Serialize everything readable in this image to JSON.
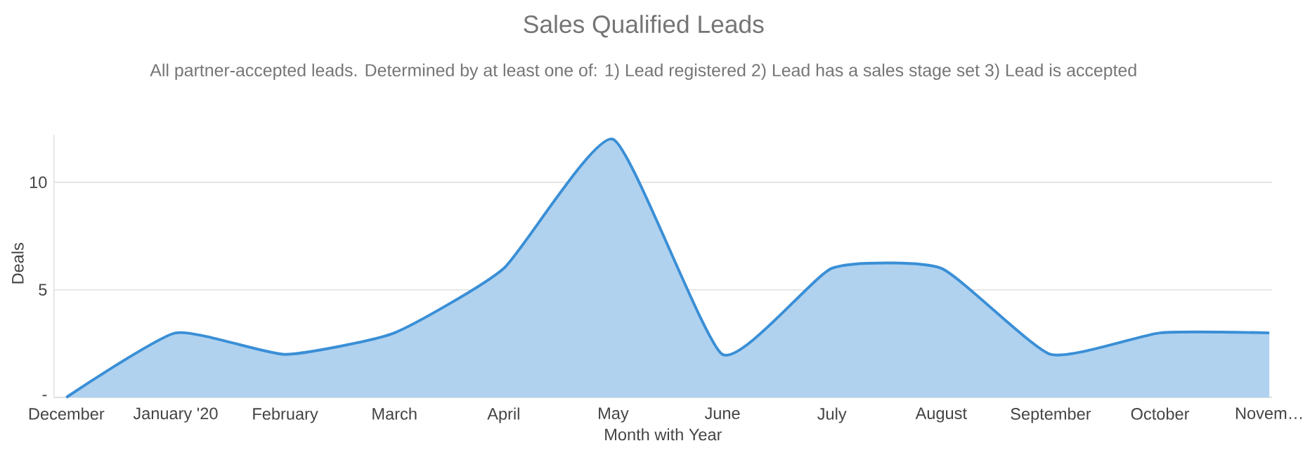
{
  "chart_data": {
    "type": "area",
    "title": "Sales Qualified Leads",
    "subtitle": "All partner-accepted leads. Determined by at least one of: 1) Lead registered 2) Lead has a sales stage set 3) Lead is accepted",
    "xlabel": "Month with Year",
    "ylabel": "Deals",
    "categories": [
      "December",
      "January '20",
      "February",
      "March",
      "April",
      "May",
      "June",
      "July",
      "August",
      "September",
      "October",
      "Novem…"
    ],
    "series": [
      {
        "color": "#3a8fd6",
        "values": [
          0,
          3,
          2,
          3,
          6,
          12,
          2,
          6,
          6,
          2,
          3,
          3
        ]
      }
    ],
    "ylim": [
      0,
      12.2
    ],
    "yticks": [
      {
        "value": 0,
        "label": "-"
      },
      5,
      10
    ],
    "grid": "y"
  }
}
